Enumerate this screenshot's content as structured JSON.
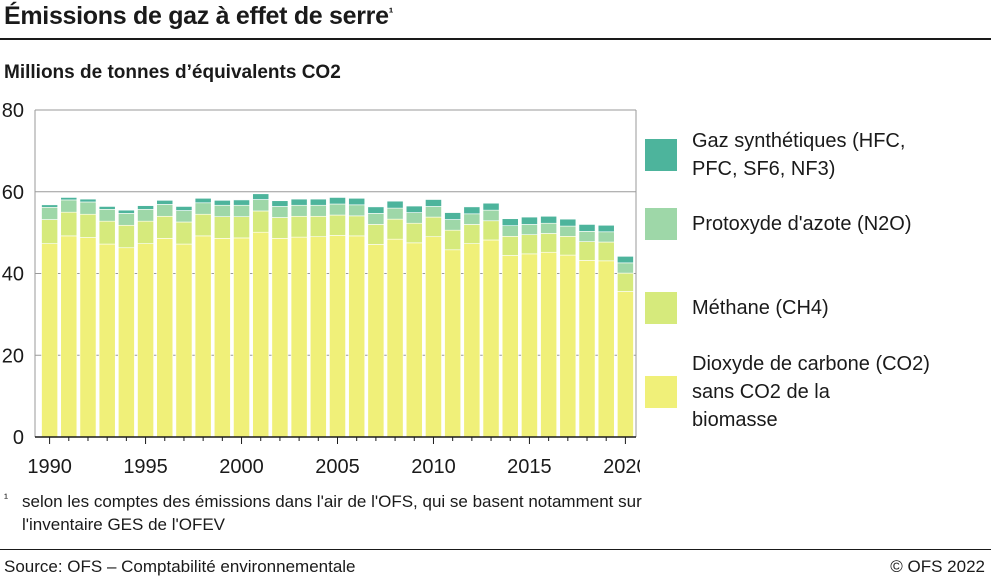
{
  "title": "Émissions de gaz à effet de serre",
  "title_footnote_mark": "¹",
  "subtitle": "Millions de tonnes d’équivalents CO2",
  "footnote": {
    "mark": "¹",
    "text": "selon les comptes des émissions dans l'air de l'OFS, qui se basent notamment sur l'inventaire GES de l'OFEV"
  },
  "source": "Source: OFS – Comptabilité environnementale",
  "copyright": "© OFS 2022",
  "colors": {
    "co2": "#f0f079",
    "methane": "#d6ea7c",
    "n2o": "#9ed7a8",
    "synth": "#4db49c",
    "grid": "#9a9a9a",
    "axis": "#1a1a1a"
  },
  "legend": [
    {
      "label_lines": [
        "Gaz synthétiques (HFC,",
        "PFC, SF6, NF3)"
      ],
      "color": "#4db49c"
    },
    {
      "label_lines": [
        "Protoxyde d'azote (N2O)"
      ],
      "color": "#9ed7a8"
    },
    {
      "label_lines": [
        "Méthane (CH4)"
      ],
      "color": "#d6ea7c"
    },
    {
      "label_lines": [
        "Dioxyde de carbone (CO2)",
        "sans CO2 de la",
        "biomasse"
      ],
      "color": "#f0f079"
    }
  ],
  "chart_data": {
    "type": "bar",
    "stacked": true,
    "x": [
      1990,
      1991,
      1992,
      1993,
      1994,
      1995,
      1996,
      1997,
      1998,
      1999,
      2000,
      2001,
      2002,
      2003,
      2004,
      2005,
      2006,
      2007,
      2008,
      2009,
      2010,
      2011,
      2012,
      2013,
      2014,
      2015,
      2016,
      2017,
      2018,
      2019,
      2020
    ],
    "x_ticks": [
      "1990",
      "1995",
      "2000",
      "2005",
      "2010",
      "2015",
      "2020"
    ],
    "y_ticks": [
      "0",
      "20",
      "40",
      "60",
      "80"
    ],
    "ylim": [
      0,
      80
    ],
    "grid": true,
    "legend_position": "right",
    "series": [
      {
        "name": "Dioxyde de carbone (CO2) sans CO2 de la biomasse",
        "values": [
          47.3,
          49.2,
          48.8,
          47.2,
          46.3,
          47.3,
          48.6,
          47.2,
          49.2,
          48.6,
          48.7,
          50.1,
          48.6,
          48.9,
          49.0,
          49.3,
          49.2,
          47.1,
          48.4,
          47.5,
          49.0,
          45.8,
          47.3,
          48.2,
          44.4,
          44.8,
          45.2,
          44.5,
          43.2,
          43.1,
          35.6
        ]
      },
      {
        "name": "Méthane (CH4)",
        "values": [
          5.9,
          5.8,
          5.7,
          5.6,
          5.5,
          5.5,
          5.4,
          5.4,
          5.3,
          5.3,
          5.2,
          5.2,
          5.1,
          5.1,
          5.0,
          5.0,
          4.9,
          4.9,
          4.9,
          4.8,
          4.8,
          4.8,
          4.7,
          4.7,
          4.7,
          4.7,
          4.6,
          4.6,
          4.6,
          4.6,
          4.5
        ]
      },
      {
        "name": "Protoxyde d'azote (N2O)",
        "values": [
          3.0,
          3.0,
          3.0,
          2.9,
          2.9,
          2.9,
          2.9,
          2.8,
          2.8,
          2.8,
          2.8,
          2.8,
          2.7,
          2.7,
          2.7,
          2.7,
          2.7,
          2.7,
          2.7,
          2.6,
          2.6,
          2.6,
          2.6,
          2.6,
          2.6,
          2.5,
          2.5,
          2.5,
          2.5,
          2.5,
          2.5
        ]
      },
      {
        "name": "Gaz synthétiques (HFC, PFC, SF6, NF3)",
        "values": [
          0.6,
          0.6,
          0.7,
          0.7,
          0.8,
          0.9,
          1.0,
          1.0,
          1.1,
          1.2,
          1.3,
          1.4,
          1.4,
          1.5,
          1.5,
          1.6,
          1.6,
          1.6,
          1.7,
          1.6,
          1.7,
          1.7,
          1.7,
          1.7,
          1.7,
          1.8,
          1.7,
          1.7,
          1.7,
          1.6,
          1.6
        ]
      }
    ]
  }
}
